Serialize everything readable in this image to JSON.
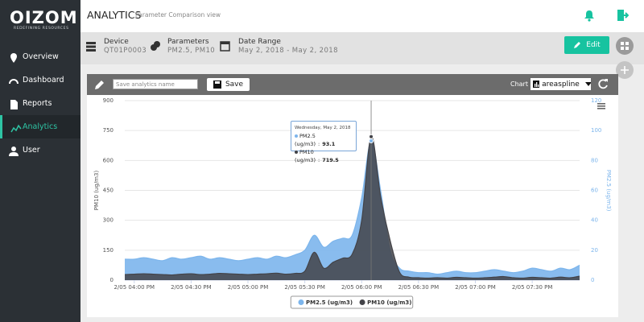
{
  "brand": {
    "name": "OIZOM",
    "tagline": "REDEFINING RESOURCES"
  },
  "nav": {
    "items": [
      "Overview",
      "Dashboard",
      "Reports",
      "Analytics",
      "User"
    ],
    "active": "Analytics"
  },
  "header": {
    "title": "ANALYTICS",
    "subtitle": "Parameter Comparison view"
  },
  "info": {
    "device_label": "Device",
    "device": "QT01P0003",
    "parameters_label": "Parameters",
    "parameters": "PM2.5, PM10",
    "date_label": "Date Range",
    "date_range": "May 2, 2018 - May 2, 2018"
  },
  "edit_button": "Edit",
  "toolbar": {
    "name_placeholder": "Save analytics name",
    "save_button": "Save",
    "chart_label": "Chart"
  },
  "tooltip": {
    "title": "Wednesday, May 2, 2018",
    "separator": ":"
  },
  "chart_data": {
    "type": "areaspline",
    "x": [
      null,
      "2/05 04:00 PM",
      null,
      null,
      null,
      null,
      null,
      "2/05 04:30 PM",
      null,
      null,
      null,
      null,
      null,
      "2/05 05:00 PM",
      null,
      null,
      null,
      null,
      null,
      "2/05 05:30 PM",
      null,
      null,
      null,
      null,
      null,
      "2/05 06:00 PM",
      null,
      null,
      null,
      null,
      null,
      "2/05 06:30 PM",
      null,
      null,
      null,
      null,
      null,
      "2/05 07:00 PM",
      null,
      null,
      null,
      null,
      null,
      "2/05 07:30 PM",
      null,
      null,
      null,
      null,
      null
    ],
    "ylabel": "PM10 (ug/m3)",
    "y2label": "PM2.5 (ug/m3)",
    "ylim": [
      0,
      900
    ],
    "yticks": [
      0,
      150,
      300,
      450,
      600,
      750,
      900
    ],
    "y2lim": [
      0,
      120
    ],
    "y2ticks": [
      0,
      20,
      40,
      60,
      80,
      100,
      120
    ],
    "series": [
      {
        "name": "PM2.5 (ug/m3)",
        "color": "#7cb5ec",
        "axis": "y2",
        "values": [
          14,
          14,
          15,
          14,
          13,
          15,
          14,
          15,
          16,
          14,
          15,
          14,
          13,
          14,
          15,
          14,
          16,
          15,
          17,
          20,
          30,
          22,
          26,
          28,
          30,
          55,
          93.1,
          60,
          20,
          8,
          6,
          5,
          5,
          4,
          5,
          6,
          5,
          5,
          6,
          7,
          6,
          5,
          6,
          8,
          7,
          6,
          8,
          7,
          10
        ]
      },
      {
        "name": "PM10 (ug/m3)",
        "color": "#434348",
        "values": [
          28,
          30,
          32,
          30,
          28,
          26,
          30,
          32,
          28,
          30,
          34,
          32,
          30,
          28,
          30,
          32,
          35,
          30,
          34,
          45,
          140,
          60,
          90,
          110,
          130,
          300,
          719.5,
          420,
          200,
          40,
          15,
          12,
          10,
          12,
          10,
          14,
          12,
          10,
          12,
          15,
          18,
          12,
          10,
          14,
          12,
          10,
          15,
          12,
          20
        ]
      }
    ]
  }
}
